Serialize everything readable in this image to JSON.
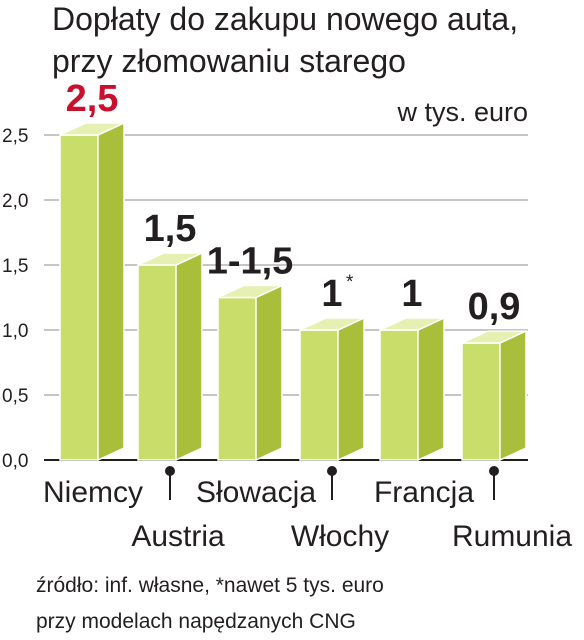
{
  "title_line1": "Dopłaty do zakupu nowego auta,",
  "title_line2": "przy złomowaniu starego",
  "unit": "w tys. euro",
  "source_line1": "źródło: inf. własne, *nawet 5 tys. euro",
  "source_line2": "przy modelach napędzanych CNG",
  "colors": {
    "bar_front": "#c9dd6b",
    "bar_side": "#a9bf3c",
    "bar_top": "#e6f0b2",
    "highlight_label": "#c8102e",
    "gridline": "#8c8c8c",
    "text": "#231f20"
  },
  "chart_data": {
    "type": "bar",
    "categories": [
      "Niemcy",
      "Austria",
      "Słowacja",
      "Włochy",
      "Francja",
      "Rumunia"
    ],
    "values": [
      2.5,
      1.5,
      1.25,
      1.0,
      1.0,
      0.9
    ],
    "value_labels": [
      "2,5",
      "1,5",
      "1-1,5",
      "1",
      "1",
      "0,9"
    ],
    "label_marks": [
      "",
      "",
      "",
      "*",
      "",
      ""
    ],
    "highlighted": [
      true,
      false,
      false,
      false,
      false,
      false
    ],
    "yticks": [
      "0,0",
      "0,5",
      "1,0",
      "1,5",
      "2,0",
      "2,5"
    ],
    "ylim": [
      0,
      2.5
    ],
    "grid": true,
    "legend": "none"
  }
}
